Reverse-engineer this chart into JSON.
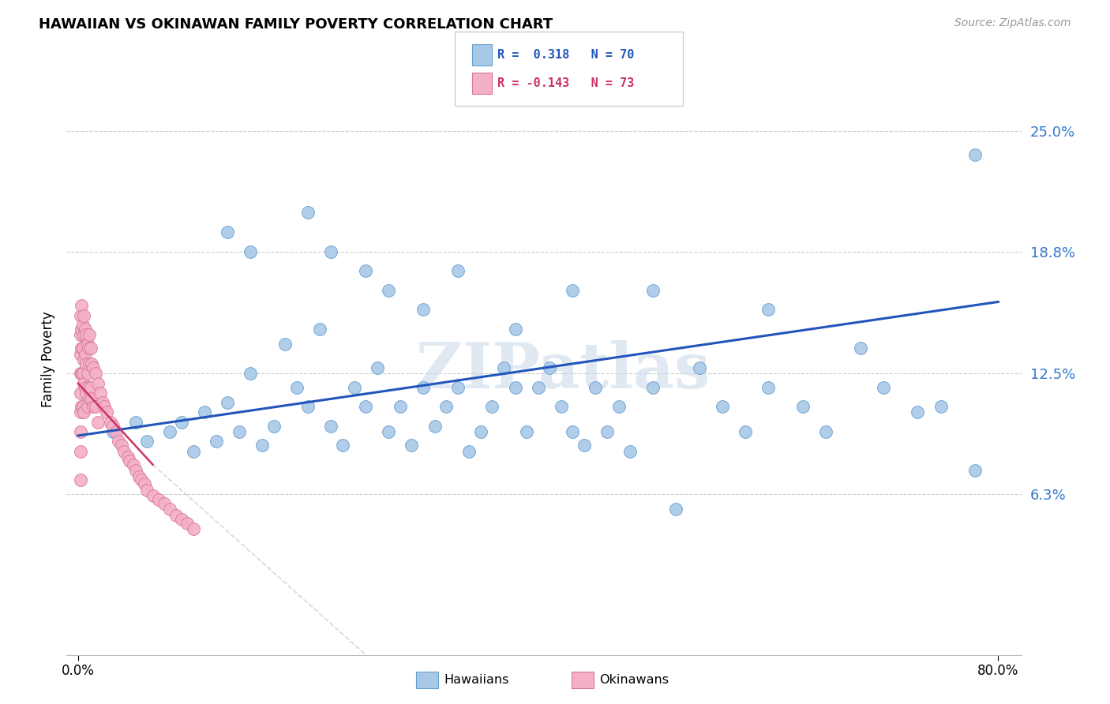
{
  "title": "HAWAIIAN VS OKINAWAN FAMILY POVERTY CORRELATION CHART",
  "source": "Source: ZipAtlas.com",
  "ylabel": "Family Poverty",
  "yticks": [
    0.063,
    0.125,
    0.188,
    0.25
  ],
  "ytick_labels": [
    "6.3%",
    "12.5%",
    "18.8%",
    "25.0%"
  ],
  "watermark": "ZIPatlas",
  "hawaiians_color": "#a8c8e8",
  "hawaiians_edge": "#6aa0cc",
  "okinawans_color": "#f4b0c8",
  "okinawans_edge": "#d87898",
  "trend_blue": "#2255bb",
  "trend_pink": "#cc3366",
  "trend_pink_dashed": "#ddbbcc",
  "hawaiians_x": [
    0.03,
    0.05,
    0.06,
    0.08,
    0.09,
    0.1,
    0.11,
    0.12,
    0.13,
    0.14,
    0.15,
    0.16,
    0.17,
    0.18,
    0.19,
    0.2,
    0.21,
    0.22,
    0.23,
    0.24,
    0.25,
    0.26,
    0.27,
    0.28,
    0.29,
    0.3,
    0.31,
    0.32,
    0.33,
    0.34,
    0.35,
    0.36,
    0.37,
    0.38,
    0.39,
    0.4,
    0.41,
    0.42,
    0.43,
    0.44,
    0.45,
    0.46,
    0.47,
    0.48,
    0.5,
    0.52,
    0.54,
    0.56,
    0.58,
    0.6,
    0.63,
    0.65,
    0.68,
    0.7,
    0.73,
    0.75,
    0.78,
    0.13,
    0.15,
    0.2,
    0.22,
    0.25,
    0.27,
    0.3,
    0.33,
    0.38,
    0.43,
    0.5,
    0.6,
    0.78
  ],
  "hawaiians_y": [
    0.095,
    0.1,
    0.09,
    0.095,
    0.1,
    0.085,
    0.105,
    0.09,
    0.11,
    0.095,
    0.125,
    0.088,
    0.098,
    0.14,
    0.118,
    0.108,
    0.148,
    0.098,
    0.088,
    0.118,
    0.108,
    0.128,
    0.095,
    0.108,
    0.088,
    0.118,
    0.098,
    0.108,
    0.118,
    0.085,
    0.095,
    0.108,
    0.128,
    0.118,
    0.095,
    0.118,
    0.128,
    0.108,
    0.095,
    0.088,
    0.118,
    0.095,
    0.108,
    0.085,
    0.118,
    0.055,
    0.128,
    0.108,
    0.095,
    0.118,
    0.108,
    0.095,
    0.138,
    0.118,
    0.105,
    0.108,
    0.075,
    0.198,
    0.188,
    0.208,
    0.188,
    0.178,
    0.168,
    0.158,
    0.178,
    0.148,
    0.168,
    0.168,
    0.158,
    0.238
  ],
  "okinawans_x": [
    0.002,
    0.002,
    0.002,
    0.002,
    0.002,
    0.002,
    0.002,
    0.002,
    0.002,
    0.003,
    0.003,
    0.003,
    0.003,
    0.003,
    0.004,
    0.004,
    0.004,
    0.004,
    0.005,
    0.005,
    0.005,
    0.005,
    0.005,
    0.006,
    0.006,
    0.006,
    0.007,
    0.007,
    0.007,
    0.008,
    0.008,
    0.008,
    0.009,
    0.009,
    0.01,
    0.01,
    0.01,
    0.011,
    0.011,
    0.012,
    0.012,
    0.013,
    0.013,
    0.015,
    0.015,
    0.017,
    0.017,
    0.019,
    0.021,
    0.023,
    0.025,
    0.028,
    0.03,
    0.033,
    0.035,
    0.038,
    0.04,
    0.043,
    0.045,
    0.048,
    0.05,
    0.053,
    0.055,
    0.058,
    0.06,
    0.065,
    0.07,
    0.075,
    0.08,
    0.085,
    0.09,
    0.095,
    0.1
  ],
  "okinawans_y": [
    0.155,
    0.145,
    0.135,
    0.125,
    0.115,
    0.105,
    0.095,
    0.085,
    0.07,
    0.16,
    0.148,
    0.138,
    0.125,
    0.108,
    0.15,
    0.138,
    0.125,
    0.108,
    0.155,
    0.145,
    0.132,
    0.12,
    0.105,
    0.148,
    0.135,
    0.118,
    0.145,
    0.13,
    0.115,
    0.14,
    0.125,
    0.108,
    0.138,
    0.118,
    0.145,
    0.13,
    0.112,
    0.138,
    0.118,
    0.13,
    0.112,
    0.128,
    0.108,
    0.125,
    0.108,
    0.12,
    0.1,
    0.115,
    0.11,
    0.108,
    0.105,
    0.1,
    0.098,
    0.095,
    0.09,
    0.088,
    0.085,
    0.082,
    0.08,
    0.078,
    0.075,
    0.072,
    0.07,
    0.068,
    0.065,
    0.062,
    0.06,
    0.058,
    0.055,
    0.052,
    0.05,
    0.048,
    0.045
  ],
  "xlim": [
    -0.01,
    0.82
  ],
  "ylim": [
    -0.02,
    0.285
  ]
}
